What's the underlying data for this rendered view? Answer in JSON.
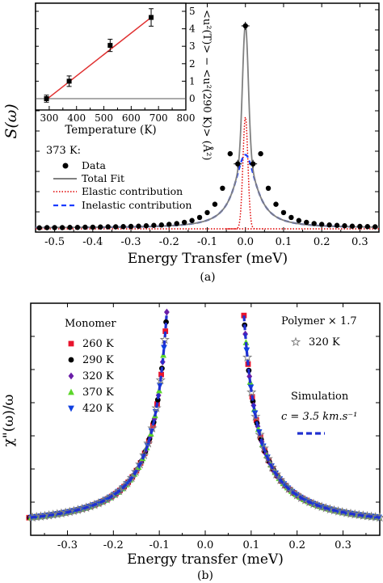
{
  "chart_data": [
    {
      "type": "line",
      "panel_label": "(a)",
      "xlabel": "Energy Transfer (meV)",
      "ylabel": "S(ω)",
      "xlim": [
        -0.55,
        0.35
      ],
      "x_ticks": [
        -0.5,
        -0.4,
        -0.3,
        -0.2,
        -0.1,
        0.0,
        0.1,
        0.2,
        0.3
      ],
      "x_tick_labels": [
        "-0.5",
        "-0.4",
        "-0.3",
        "-0.2",
        "-0.1",
        "0.0",
        "0.1",
        "0.2",
        "0.3"
      ],
      "y_ticks_labeled": false,
      "legend_title": "373 K:",
      "legend_position": "left",
      "series": [
        {
          "name": "Data",
          "color": "#000000",
          "style": "markers",
          "x": [
            -0.54,
            -0.52,
            -0.5,
            -0.48,
            -0.46,
            -0.44,
            -0.42,
            -0.4,
            -0.38,
            -0.36,
            -0.34,
            -0.32,
            -0.3,
            -0.28,
            -0.26,
            -0.24,
            -0.22,
            -0.2,
            -0.18,
            -0.16,
            -0.14,
            -0.12,
            -0.1,
            -0.08,
            -0.06,
            -0.04,
            -0.02,
            0.0,
            0.02,
            0.04,
            0.06,
            0.08,
            0.1,
            0.12,
            0.14,
            0.16,
            0.18,
            0.2,
            0.22,
            0.24,
            0.26,
            0.28,
            0.3,
            0.32,
            0.34
          ],
          "y": [
            0.005,
            0.006,
            0.006,
            0.006,
            0.007,
            0.007,
            0.008,
            0.008,
            0.009,
            0.01,
            0.01,
            0.011,
            0.012,
            0.013,
            0.015,
            0.017,
            0.019,
            0.022,
            0.026,
            0.032,
            0.041,
            0.056,
            0.08,
            0.121,
            0.2,
            0.37,
            0.32,
            1.0,
            0.32,
            0.37,
            0.2,
            0.121,
            0.08,
            0.056,
            0.041,
            0.032,
            0.026,
            0.022,
            0.019,
            0.017,
            0.015,
            0.013,
            0.012,
            0.011,
            0.01
          ]
        },
        {
          "name": "Total Fit",
          "color": "#808080",
          "style": "solid"
        },
        {
          "name": "Elastic contribution",
          "color": "#e00000",
          "style": "dotted"
        },
        {
          "name": "Inelastic contribution",
          "color": "#1a3cff",
          "style": "dashed"
        }
      ],
      "inset": {
        "type": "scatter",
        "xlabel": "Temperature (K)",
        "ylabel": "<u²(T)> − <u²(290 K)> (Å²)",
        "xlim": [
          250,
          800
        ],
        "ylim": [
          -0.3,
          5.3
        ],
        "x_tick_labels": [
          "300",
          "400",
          "500",
          "600",
          "700",
          "800"
        ],
        "y_tick_labels": [
          "0",
          "1",
          "2",
          "3",
          "4",
          "5"
        ],
        "points": [
          {
            "x": 290,
            "y": 0.0,
            "err": 0.2
          },
          {
            "x": 373,
            "y": 1.0,
            "err": 0.3
          },
          {
            "x": 523,
            "y": 3.05,
            "err": 0.35
          },
          {
            "x": 673,
            "y": 4.65,
            "err": 0.5
          }
        ],
        "fit_line": {
          "x": [
            290,
            673
          ],
          "y": [
            -0.05,
            4.65
          ],
          "color": "#e03030"
        }
      }
    },
    {
      "type": "scatter",
      "panel_label": "(b)",
      "xlabel": "Energy transfer (meV)",
      "ylabel": "χ\"(ω)/ω",
      "xlim": [
        -0.38,
        0.38
      ],
      "x_ticks": [
        -0.3,
        -0.2,
        -0.1,
        0.0,
        0.1,
        0.2,
        0.3
      ],
      "x_tick_labels": [
        "-0.3",
        "-0.2",
        "-0.1",
        "0.0",
        "0.1",
        "0.2",
        "0.3"
      ],
      "y_ticks_labeled": false,
      "legend_title": "Monomer",
      "series": [
        {
          "name": "260 K",
          "color": "#e8142d",
          "marker": "square"
        },
        {
          "name": "290 K",
          "color": "#000000",
          "marker": "circle"
        },
        {
          "name": "320 K",
          "color": "#6a1ea8",
          "marker": "diamond"
        },
        {
          "name": "370 K",
          "color": "#5cd62a",
          "marker": "triangle-up"
        },
        {
          "name": "420 K",
          "color": "#1040e0",
          "marker": "triangle-down"
        }
      ],
      "polymer": {
        "title": "Polymer × 1.7",
        "series": {
          "name": "320 K",
          "color": "#808080",
          "marker": "star"
        }
      },
      "simulation": {
        "title": "Simulation",
        "param": "c = 3.5 km.s⁻¹",
        "color": "#2030d0",
        "style": "dashed"
      }
    }
  ]
}
